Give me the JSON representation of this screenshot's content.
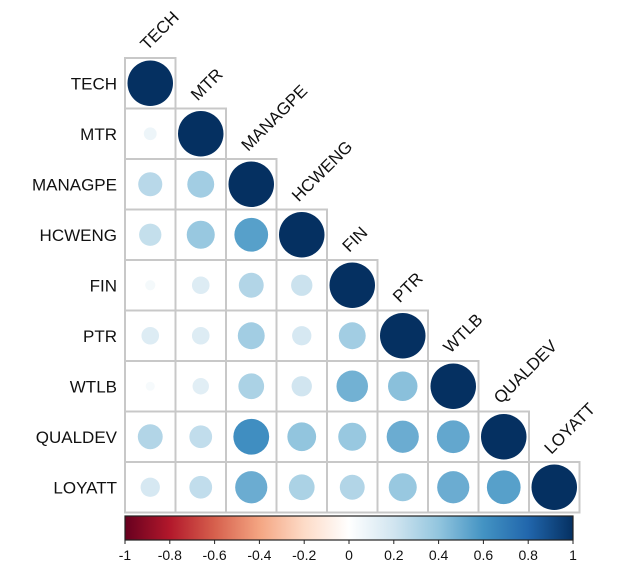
{
  "chart_data": {
    "type": "heatmap",
    "subtype": "correlation-lower-triangle-circles",
    "variables": [
      "TECH",
      "MTR",
      "MANAGPE",
      "HCWENG",
      "FIN",
      "PTR",
      "WTLB",
      "QUALDEV",
      "LOYATT"
    ],
    "matrix": [
      [
        1.0
      ],
      [
        0.08,
        1.0
      ],
      [
        0.28,
        0.35,
        1.0
      ],
      [
        0.24,
        0.38,
        0.55,
        1.0
      ],
      [
        0.05,
        0.15,
        0.3,
        0.22,
        1.0
      ],
      [
        0.15,
        0.15,
        0.35,
        0.18,
        0.35,
        1.0
      ],
      [
        0.04,
        0.13,
        0.32,
        0.2,
        0.48,
        0.42,
        1.0
      ],
      [
        0.3,
        0.25,
        0.62,
        0.4,
        0.38,
        0.5,
        0.52,
        1.0
      ],
      [
        0.18,
        0.25,
        0.5,
        0.32,
        0.3,
        0.38,
        0.5,
        0.55,
        1.0
      ]
    ],
    "colorbar": {
      "min": -1,
      "max": 1,
      "ticks": [
        "-1",
        "-0.8",
        "-0.6",
        "-0.4",
        "-0.2",
        "0",
        "0.2",
        "0.4",
        "0.6",
        "0.8",
        "1"
      ],
      "colors": [
        "#67001F",
        "#B2182B",
        "#D6604D",
        "#F4A582",
        "#FDDBC7",
        "#FFFFFF",
        "#D1E5F0",
        "#92C5DE",
        "#4393C3",
        "#2166AC",
        "#053061"
      ]
    }
  }
}
